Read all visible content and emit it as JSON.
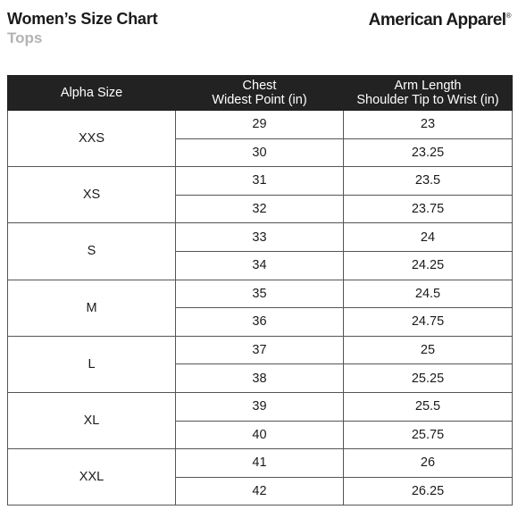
{
  "title": "Women’s Size Chart",
  "subtitle": "Tops",
  "brand": {
    "name": "American Apparel",
    "mark": "®"
  },
  "table": {
    "headers": [
      [
        "Alpha Size"
      ],
      [
        "Chest",
        "Widest Point (in)"
      ],
      [
        "Arm Length",
        "Shoulder Tip to Wrist (in)"
      ]
    ],
    "groups": [
      {
        "size": "XXS",
        "rows": [
          [
            "29",
            "23"
          ],
          [
            "30",
            "23.25"
          ]
        ]
      },
      {
        "size": "XS",
        "rows": [
          [
            "31",
            "23.5"
          ],
          [
            "32",
            "23.75"
          ]
        ]
      },
      {
        "size": "S",
        "rows": [
          [
            "33",
            "24"
          ],
          [
            "34",
            "24.25"
          ]
        ]
      },
      {
        "size": "M",
        "rows": [
          [
            "35",
            "24.5"
          ],
          [
            "36",
            "24.75"
          ]
        ]
      },
      {
        "size": "L",
        "rows": [
          [
            "37",
            "25"
          ],
          [
            "38",
            "25.25"
          ]
        ]
      },
      {
        "size": "XL",
        "rows": [
          [
            "39",
            "25.5"
          ],
          [
            "40",
            "25.75"
          ]
        ]
      },
      {
        "size": "XXL",
        "rows": [
          [
            "41",
            "26"
          ],
          [
            "42",
            "26.25"
          ]
        ]
      }
    ]
  }
}
